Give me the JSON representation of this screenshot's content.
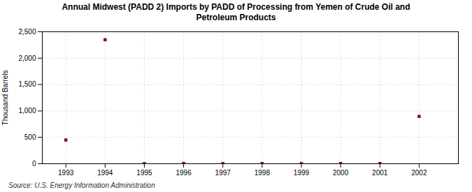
{
  "chart_data": {
    "type": "scatter",
    "title": "Annual Midwest (PADD 2) Imports by PADD of Processing from Yemen of Crude Oil and\nPetroleum Products",
    "ylabel": "Thousand Barrels",
    "caption": "Source: U.S. Energy Information Administration",
    "x": [
      1993,
      1994,
      1995,
      1996,
      1997,
      1998,
      1999,
      2000,
      2001,
      2002
    ],
    "values": [
      450,
      2349,
      2,
      5,
      2,
      3,
      2,
      3,
      4,
      897
    ],
    "color": "#8b0000",
    "marker": "square",
    "xlim": [
      1992.4,
      2003.0
    ],
    "xticks": [
      1993,
      1994,
      1995,
      1996,
      1997,
      1998,
      1999,
      2000,
      2001,
      2002
    ],
    "ylim": [
      0,
      2500
    ],
    "yticks": [
      0,
      500,
      {
        "value": 1000,
        "label": "1,000"
      },
      {
        "value": 1500,
        "label": "1,500"
      },
      {
        "value": 2000,
        "label": "2,000"
      },
      {
        "value": 2500,
        "label": "2,500"
      }
    ],
    "grid": true
  }
}
